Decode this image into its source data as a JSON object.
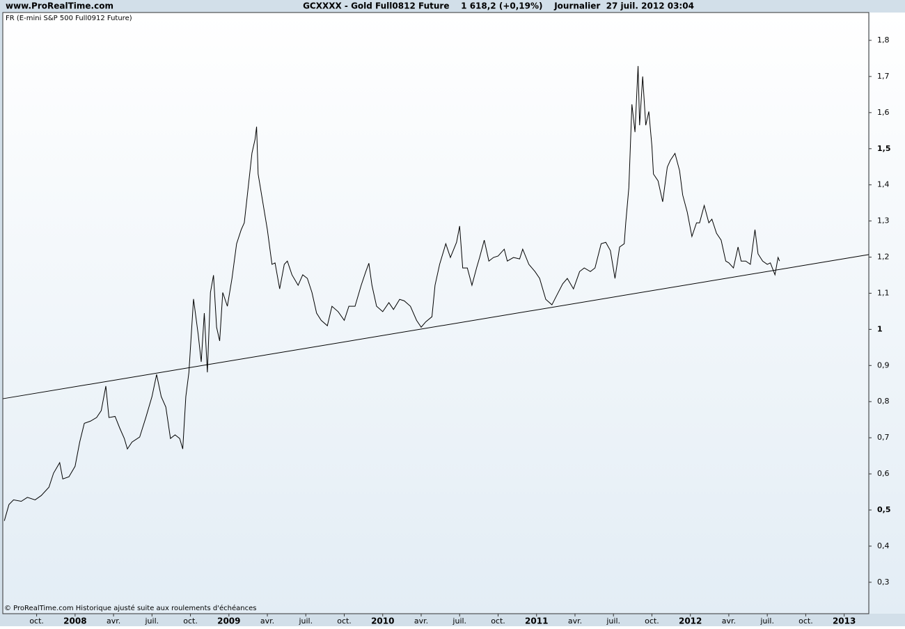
{
  "chart_data": {
    "type": "line",
    "site": "www.ProRealTime.com",
    "title": "GCXXXX - Gold Full0812 Future    1 618,2 (+0,19%)    Journalier  27 juil. 2012 03:04",
    "footnote": "© ProRealTime.com  Historique ajusté suite aux roulements d'échéances",
    "x": [
      2007.54,
      2007.57,
      2007.6,
      2007.65,
      2007.69,
      2007.74,
      2007.78,
      2007.83,
      2007.86,
      2007.9,
      2007.92,
      2007.96,
      2008.0,
      2008.03,
      2008.06,
      2008.1,
      2008.14,
      2008.17,
      2008.2,
      2008.22,
      2008.26,
      2008.29,
      2008.32,
      2008.34,
      2008.37,
      2008.42,
      2008.46,
      2008.5,
      2008.53,
      2008.56,
      2008.59,
      2008.62,
      2008.65,
      2008.68,
      2008.7,
      2008.72,
      2008.74,
      2008.77,
      2008.8,
      2008.82,
      2008.84,
      2008.86,
      2008.88,
      2008.9,
      2008.92,
      2008.94,
      2008.96,
      2008.99,
      2009.02,
      2009.05,
      2009.08,
      2009.1,
      2009.12,
      2009.15,
      2009.17,
      2009.18,
      2009.19,
      2009.22,
      2009.25,
      2009.28,
      2009.3,
      2009.33,
      2009.36,
      2009.38,
      2009.41,
      2009.45,
      2009.48,
      2009.51,
      2009.54,
      2009.57,
      2009.6,
      2009.64,
      2009.67,
      2009.71,
      2009.75,
      2009.78,
      2009.82,
      2009.86,
      2009.89,
      2009.91,
      2009.93,
      2009.96,
      2010.0,
      2010.04,
      2010.07,
      2010.11,
      2010.14,
      2010.18,
      2010.22,
      2010.25,
      2010.28,
      2010.32,
      2010.34,
      2010.37,
      2010.41,
      2010.44,
      2010.48,
      2010.5,
      2010.52,
      2010.55,
      2010.58,
      2010.61,
      2010.63,
      2010.66,
      2010.69,
      2010.72,
      2010.75,
      2010.79,
      2010.81,
      2010.85,
      2010.89,
      2010.91,
      2010.95,
      2010.99,
      2011.02,
      2011.06,
      2011.1,
      2011.13,
      2011.17,
      2011.2,
      2011.24,
      2011.28,
      2011.31,
      2011.35,
      2011.38,
      2011.42,
      2011.45,
      2011.48,
      2011.51,
      2011.54,
      2011.57,
      2011.58,
      2011.6,
      2011.62,
      2011.64,
      2011.66,
      2011.67,
      2011.69,
      2011.71,
      2011.73,
      2011.75,
      2011.76,
      2011.79,
      2011.82,
      2011.85,
      2011.87,
      2011.9,
      2011.93,
      2011.95,
      2011.98,
      2012.01,
      2012.04,
      2012.06,
      2012.09,
      2012.12,
      2012.14,
      2012.17,
      2012.2,
      2012.23,
      2012.25,
      2012.28,
      2012.31,
      2012.33,
      2012.36,
      2012.39,
      2012.42,
      2012.44,
      2012.47,
      2012.5,
      2012.52,
      2012.55,
      2012.57,
      2012.58
    ],
    "series": [
      {
        "name": "FR (E-mini S&P 500 Full0912 Future)",
        "color": "#000000",
        "values": [
          0.47,
          0.515,
          0.528,
          0.524,
          0.535,
          0.528,
          0.54,
          0.563,
          0.602,
          0.631,
          0.586,
          0.592,
          0.621,
          0.688,
          0.74,
          0.746,
          0.756,
          0.775,
          0.843,
          0.756,
          0.759,
          0.727,
          0.698,
          0.669,
          0.688,
          0.702,
          0.756,
          0.814,
          0.875,
          0.814,
          0.785,
          0.698,
          0.708,
          0.698,
          0.669,
          0.814,
          0.881,
          1.084,
          0.987,
          0.91,
          1.045,
          0.881,
          1.102,
          1.15,
          1.006,
          0.968,
          1.102,
          1.064,
          1.141,
          1.237,
          1.276,
          1.295,
          1.372,
          1.488,
          1.526,
          1.561,
          1.43,
          1.353,
          1.276,
          1.18,
          1.184,
          1.112,
          1.18,
          1.189,
          1.151,
          1.122,
          1.151,
          1.141,
          1.102,
          1.045,
          1.025,
          1.01,
          1.064,
          1.049,
          1.025,
          1.064,
          1.064,
          1.122,
          1.16,
          1.183,
          1.122,
          1.064,
          1.049,
          1.074,
          1.055,
          1.083,
          1.079,
          1.064,
          1.025,
          1.006,
          1.021,
          1.035,
          1.122,
          1.18,
          1.237,
          1.199,
          1.241,
          1.286,
          1.17,
          1.17,
          1.122,
          1.17,
          1.199,
          1.247,
          1.189,
          1.199,
          1.203,
          1.222,
          1.189,
          1.199,
          1.195,
          1.222,
          1.18,
          1.16,
          1.141,
          1.083,
          1.068,
          1.093,
          1.126,
          1.141,
          1.112,
          1.16,
          1.17,
          1.16,
          1.17,
          1.237,
          1.241,
          1.218,
          1.141,
          1.228,
          1.237,
          1.295,
          1.392,
          1.623,
          1.546,
          1.729,
          1.565,
          1.7,
          1.565,
          1.603,
          1.507,
          1.43,
          1.411,
          1.353,
          1.449,
          1.468,
          1.487,
          1.439,
          1.372,
          1.324,
          1.257,
          1.295,
          1.295,
          1.343,
          1.295,
          1.305,
          1.266,
          1.247,
          1.189,
          1.184,
          1.17,
          1.228,
          1.189,
          1.189,
          1.18,
          1.276,
          1.209,
          1.189,
          1.18,
          1.184,
          1.151,
          1.199,
          1.189
        ]
      }
    ],
    "trend_line": {
      "x": [
        2007.53,
        2013.16
      ],
      "values": [
        0.808,
        1.207
      ],
      "color": "#000000"
    },
    "xlim": [
      2007.53,
      2013.16
    ],
    "ylim": [
      0.213,
      1.877
    ],
    "yticks": [
      {
        "value": 0.3,
        "label": "0,3"
      },
      {
        "value": 0.4,
        "label": "0,4"
      },
      {
        "value": 0.5,
        "label": "0,5"
      },
      {
        "value": 0.6,
        "label": "0,6"
      },
      {
        "value": 0.7,
        "label": "0,7"
      },
      {
        "value": 0.8,
        "label": "0,8"
      },
      {
        "value": 0.9,
        "label": "0,9"
      },
      1,
      {
        "value": 1.1,
        "label": "1,1"
      },
      {
        "value": 1.2,
        "label": "1,2"
      },
      {
        "value": 1.3,
        "label": "1,3"
      },
      {
        "value": 1.4,
        "label": "1,4"
      },
      {
        "value": 1.5,
        "label": "1,5"
      },
      {
        "value": 1.6,
        "label": "1,6"
      },
      {
        "value": 1.7,
        "label": "1,7"
      },
      {
        "value": 1.8,
        "label": "1,8"
      }
    ],
    "xticks": [
      {
        "value": 2007.75,
        "label": "oct."
      },
      2008,
      {
        "value": 2008.25,
        "label": "avr."
      },
      {
        "value": 2008.5,
        "label": "juil."
      },
      {
        "value": 2008.75,
        "label": "oct."
      },
      2009,
      {
        "value": 2009.25,
        "label": "avr."
      },
      {
        "value": 2009.5,
        "label": "juil."
      },
      {
        "value": 2009.75,
        "label": "oct."
      },
      2010,
      {
        "value": 2010.25,
        "label": "avr."
      },
      {
        "value": 2010.5,
        "label": "juil."
      },
      {
        "value": 2010.75,
        "label": "oct."
      },
      2011,
      {
        "value": 2011.25,
        "label": "avr."
      },
      {
        "value": 2011.5,
        "label": "juil."
      },
      {
        "value": 2011.75,
        "label": "oct."
      },
      2012,
      {
        "value": 2012.25,
        "label": "avr."
      },
      {
        "value": 2012.5,
        "label": "juil."
      },
      {
        "value": 2012.75,
        "label": "oct."
      },
      2013
    ],
    "grid": false
  }
}
